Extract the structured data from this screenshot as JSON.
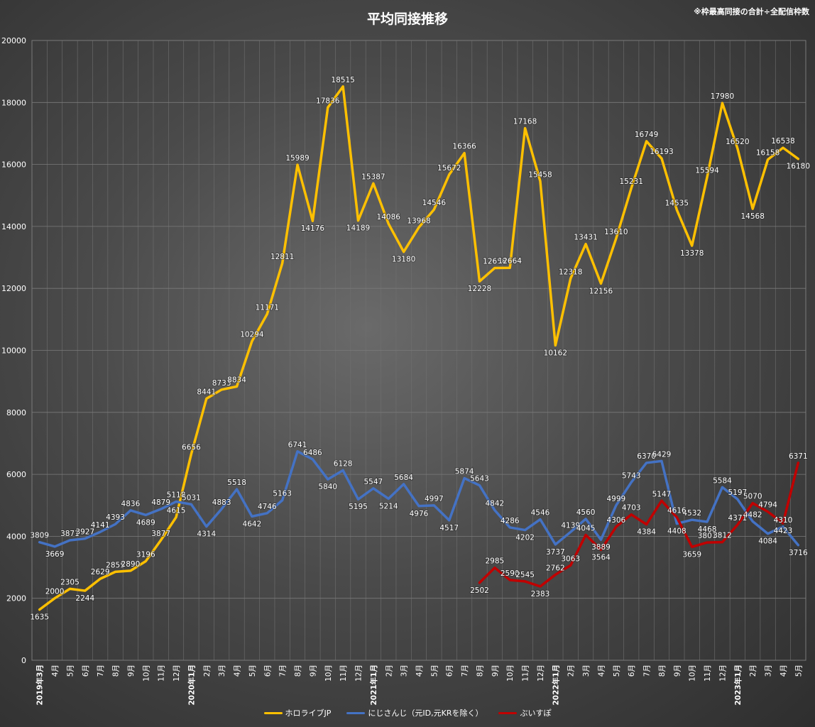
{
  "chart_data": {
    "type": "line",
    "title": "平均同接推移",
    "note": "※枠最高同接の合計÷全配信枠数",
    "ylim": [
      0,
      20000
    ],
    "yticks": [
      0,
      2000,
      4000,
      6000,
      8000,
      10000,
      12000,
      14000,
      16000,
      18000,
      20000
    ],
    "grid": true,
    "legend_position": "bottom",
    "categories": [
      "2019年3月",
      "4月",
      "5月",
      "6月",
      "7月",
      "8月",
      "9月",
      "10月",
      "11月",
      "12月",
      "2020年1月",
      "2月",
      "3月",
      "4月",
      "5月",
      "6月",
      "7月",
      "8月",
      "9月",
      "10月",
      "11月",
      "12月",
      "2021年1月",
      "2月",
      "3月",
      "4月",
      "5月",
      "6月",
      "7月",
      "8月",
      "9月",
      "10月",
      "11月",
      "12月",
      "2022年1月",
      "2月",
      "3月",
      "4月",
      "5月",
      "6月",
      "7月",
      "8月",
      "9月",
      "10月",
      "11月",
      "12月",
      "2023年1月",
      "2月",
      "3月",
      "4月",
      "5月"
    ],
    "series": [
      {
        "name": "ホロライブJP",
        "color": "#ffc000",
        "values": [
          1635,
          2000,
          2305,
          2244,
          2629,
          2855,
          2890,
          3196,
          3877,
          4615,
          6656,
          8441,
          8733,
          8834,
          10294,
          11171,
          12811,
          15989,
          14176,
          17836,
          18515,
          14189,
          15387,
          14086,
          13180,
          13968,
          14546,
          15672,
          16366,
          12228,
          12658,
          12664,
          17168,
          15458,
          10162,
          12318,
          13431,
          12156,
          13610,
          15231,
          16749,
          16193,
          14535,
          13378,
          15594,
          17980,
          16520,
          14568,
          16158,
          16538,
          16180
        ]
      },
      {
        "name": "にじさんじ（元ID,元KRを除く）",
        "color": "#4472c4",
        "values": [
          3809,
          3669,
          3871,
          3927,
          4141,
          4393,
          4836,
          4689,
          4879,
          5118,
          5031,
          4314,
          4883,
          5518,
          4642,
          4746,
          5163,
          6741,
          6486,
          5840,
          6128,
          5195,
          5547,
          5214,
          5684,
          4976,
          4997,
          4517,
          5874,
          5643,
          4842,
          4286,
          4202,
          4546,
          3737,
          4139,
          4560,
          3889,
          4999,
          5743,
          6370,
          6429,
          4408,
          4532,
          4468,
          5584,
          5197,
          4482,
          4084,
          4310,
          3716
        ]
      },
      {
        "name": "ぶいすぽ",
        "color": "#c00000",
        "values": [
          null,
          null,
          null,
          null,
          null,
          null,
          null,
          null,
          null,
          null,
          null,
          null,
          null,
          null,
          null,
          null,
          null,
          null,
          null,
          null,
          null,
          null,
          null,
          null,
          null,
          null,
          null,
          null,
          null,
          2502,
          2985,
          2590,
          2545,
          2383,
          2762,
          3063,
          4045,
          3564,
          4306,
          4703,
          4384,
          5147,
          4616,
          3659,
          3801,
          3812,
          4371,
          5070,
          4794,
          4423,
          6371
        ]
      }
    ]
  }
}
